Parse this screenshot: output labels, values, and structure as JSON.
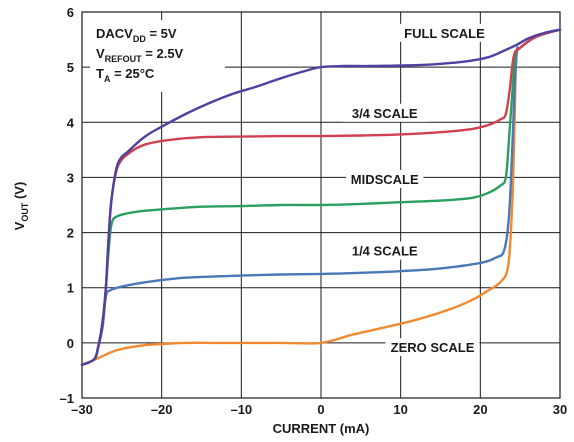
{
  "chart_data": {
    "type": "line",
    "xlabel": "CURRENT (mA)",
    "ylabel_main": "V",
    "ylabel_sub": "OUT",
    "ylabel_unit": " (V)",
    "xlim": [
      -30,
      30
    ],
    "ylim": [
      -1,
      6
    ],
    "xticks": [
      -30,
      -20,
      -10,
      0,
      10,
      20,
      30
    ],
    "yticks": [
      -1,
      0,
      1,
      2,
      3,
      4,
      5,
      6
    ],
    "xtick_labels": [
      "–30",
      "–20",
      "–10",
      "0",
      "10",
      "20",
      "30"
    ],
    "ytick_labels": [
      "–1",
      "0",
      "1",
      "2",
      "3",
      "4",
      "5",
      "6"
    ],
    "grid": true,
    "conditions": [
      {
        "main": "DACV",
        "sub": "DD",
        "rest": " = 5V"
      },
      {
        "main": "V",
        "sub": "REFOUT",
        "rest": " = 2.5V"
      },
      {
        "main": "T",
        "sub": "A",
        "rest": " = 25°C"
      }
    ],
    "series": [
      {
        "name": "ZERO SCALE",
        "color": "#f08a30",
        "points": [
          [
            -30,
            -0.4
          ],
          [
            -28,
            -0.28
          ],
          [
            -26,
            -0.15
          ],
          [
            -24,
            -0.08
          ],
          [
            -22,
            -0.04
          ],
          [
            -20,
            -0.02
          ],
          [
            -17,
            0.0
          ],
          [
            -14,
            0.0
          ],
          [
            -10,
            0.0
          ],
          [
            -5,
            0.0
          ],
          [
            0,
            0.0
          ],
          [
            4,
            0.15
          ],
          [
            8,
            0.28
          ],
          [
            12,
            0.42
          ],
          [
            16,
            0.6
          ],
          [
            19,
            0.78
          ],
          [
            21,
            0.95
          ],
          [
            22.5,
            1.1
          ],
          [
            23.5,
            1.4
          ],
          [
            24.0,
            2.5
          ],
          [
            24.3,
            4.0
          ],
          [
            24.5,
            5.2
          ],
          [
            25,
            5.35
          ],
          [
            27,
            5.55
          ],
          [
            30,
            5.68
          ]
        ]
      },
      {
        "name": "1/4 SCALE",
        "color": "#4a78b8",
        "points": [
          [
            -30,
            -0.4
          ],
          [
            -28.5,
            -0.3
          ],
          [
            -28,
            -0.1
          ],
          [
            -27.4,
            0.3
          ],
          [
            -27,
            0.85
          ],
          [
            -26.5,
            0.95
          ],
          [
            -25,
            1.02
          ],
          [
            -22,
            1.1
          ],
          [
            -18,
            1.17
          ],
          [
            -14,
            1.2
          ],
          [
            -10,
            1.22
          ],
          [
            -5,
            1.24
          ],
          [
            0,
            1.25
          ],
          [
            5,
            1.27
          ],
          [
            10,
            1.3
          ],
          [
            15,
            1.35
          ],
          [
            20,
            1.45
          ],
          [
            22,
            1.55
          ],
          [
            23,
            1.68
          ],
          [
            23.6,
            2.3
          ],
          [
            24.0,
            3.5
          ],
          [
            24.3,
            4.6
          ],
          [
            24.6,
            5.3
          ],
          [
            25,
            5.35
          ],
          [
            27,
            5.55
          ],
          [
            30,
            5.68
          ]
        ]
      },
      {
        "name": "MIDSCALE",
        "color": "#2aa060",
        "points": [
          [
            -30,
            -0.4
          ],
          [
            -28.5,
            -0.3
          ],
          [
            -28,
            -0.1
          ],
          [
            -27.4,
            0.4
          ],
          [
            -27,
            1.0
          ],
          [
            -26.7,
            1.6
          ],
          [
            -26.3,
            2.15
          ],
          [
            -25.5,
            2.3
          ],
          [
            -23,
            2.38
          ],
          [
            -20,
            2.42
          ],
          [
            -15,
            2.47
          ],
          [
            -10,
            2.48
          ],
          [
            -5,
            2.5
          ],
          [
            0,
            2.5
          ],
          [
            5,
            2.52
          ],
          [
            10,
            2.55
          ],
          [
            15,
            2.58
          ],
          [
            19,
            2.63
          ],
          [
            21,
            2.72
          ],
          [
            22.5,
            2.85
          ],
          [
            23.2,
            3.0
          ],
          [
            23.6,
            3.7
          ],
          [
            24.0,
            4.5
          ],
          [
            24.4,
            5.2
          ],
          [
            25,
            5.35
          ],
          [
            27,
            5.55
          ],
          [
            30,
            5.68
          ]
        ]
      },
      {
        "name": "3/4 SCALE",
        "color": "#d04050",
        "points": [
          [
            -30,
            -0.4
          ],
          [
            -28.5,
            -0.3
          ],
          [
            -28,
            -0.1
          ],
          [
            -27.4,
            0.4
          ],
          [
            -27,
            1.0
          ],
          [
            -26.7,
            1.8
          ],
          [
            -26.3,
            2.6
          ],
          [
            -25.5,
            3.2
          ],
          [
            -24,
            3.45
          ],
          [
            -22,
            3.6
          ],
          [
            -19,
            3.68
          ],
          [
            -15,
            3.73
          ],
          [
            -10,
            3.74
          ],
          [
            -5,
            3.75
          ],
          [
            0,
            3.75
          ],
          [
            5,
            3.76
          ],
          [
            10,
            3.78
          ],
          [
            15,
            3.82
          ],
          [
            19,
            3.88
          ],
          [
            21,
            3.95
          ],
          [
            22.5,
            4.05
          ],
          [
            23.2,
            4.15
          ],
          [
            23.7,
            4.6
          ],
          [
            24.2,
            5.2
          ],
          [
            25,
            5.35
          ],
          [
            27,
            5.55
          ],
          [
            30,
            5.68
          ]
        ]
      },
      {
        "name": "FULL SCALE",
        "color": "#5040a0",
        "points": [
          [
            -30,
            -0.4
          ],
          [
            -28.5,
            -0.3
          ],
          [
            -28,
            -0.1
          ],
          [
            -27.4,
            0.4
          ],
          [
            -27,
            1.0
          ],
          [
            -26.7,
            1.8
          ],
          [
            -26.3,
            2.6
          ],
          [
            -25.5,
            3.25
          ],
          [
            -24,
            3.5
          ],
          [
            -22,
            3.75
          ],
          [
            -20,
            3.92
          ],
          [
            -17,
            4.15
          ],
          [
            -14,
            4.35
          ],
          [
            -11,
            4.52
          ],
          [
            -8,
            4.65
          ],
          [
            -5,
            4.8
          ],
          [
            -2,
            4.93
          ],
          [
            0,
            5.0
          ],
          [
            3,
            5.02
          ],
          [
            6,
            5.02
          ],
          [
            10,
            5.03
          ],
          [
            14,
            5.05
          ],
          [
            18,
            5.1
          ],
          [
            21,
            5.18
          ],
          [
            23,
            5.3
          ],
          [
            24.5,
            5.4
          ],
          [
            26,
            5.52
          ],
          [
            28,
            5.62
          ],
          [
            30,
            5.68
          ]
        ]
      }
    ],
    "annotations": [
      {
        "text": "FULL SCALE",
        "x": 15.5,
        "y": 5.55
      },
      {
        "text": "3/4 SCALE",
        "x": 8.0,
        "y": 4.1
      },
      {
        "text": "MIDSCALE",
        "x": 8.0,
        "y": 2.9
      },
      {
        "text": "1/4 SCALE",
        "x": 8.0,
        "y": 1.6
      },
      {
        "text": "ZERO SCALE",
        "x": 14.0,
        "y": -0.15
      }
    ]
  }
}
